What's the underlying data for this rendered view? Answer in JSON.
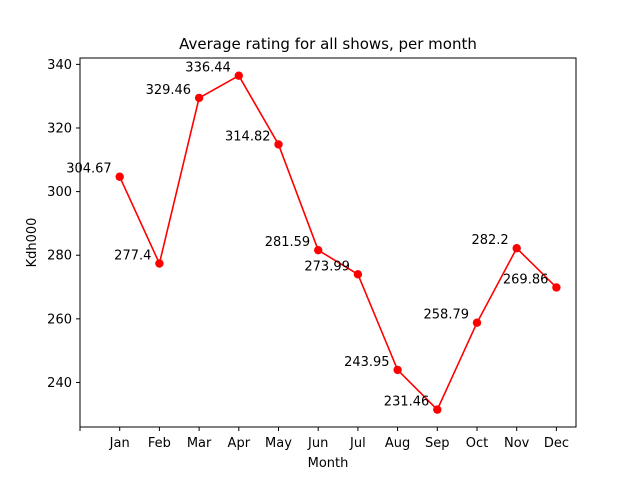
{
  "chart_data": {
    "type": "line",
    "title": "Average rating for all shows, per month",
    "xlabel": "Month",
    "ylabel": "Kdh000",
    "categories": [
      "Jan",
      "Feb",
      "Mar",
      "Apr",
      "May",
      "Jun",
      "Jul",
      "Aug",
      "Sep",
      "Oct",
      "Nov",
      "Dec"
    ],
    "series": [
      {
        "values": [
          304.67,
          277.4,
          329.46,
          336.44,
          314.82,
          281.59,
          273.99,
          243.95,
          231.46,
          258.79,
          282.2,
          269.86
        ],
        "color": "#ff0000"
      }
    ],
    "data_labels": [
      "304.67",
      "277.4",
      "329.46",
      "336.44",
      "314.82",
      "281.59",
      "273.99",
      "243.95",
      "231.46",
      "258.79",
      "282.2",
      "269.86"
    ],
    "ylim": [
      226,
      342
    ],
    "yticks": [
      240,
      260,
      280,
      300,
      320,
      340
    ],
    "grid": false,
    "legend": "none"
  }
}
